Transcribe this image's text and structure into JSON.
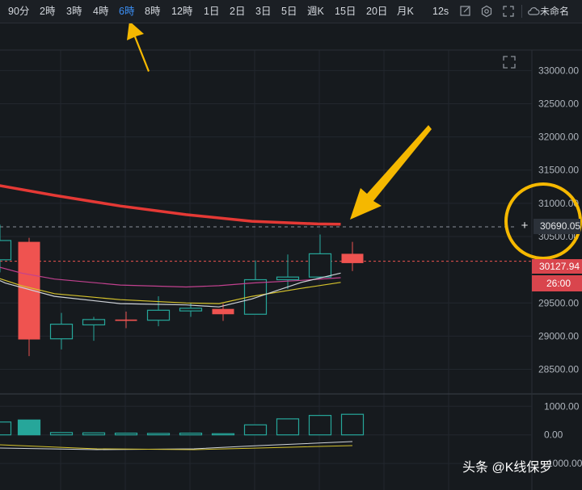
{
  "toolbar": {
    "intervals": [
      {
        "label": "90分",
        "active": false
      },
      {
        "label": "2時",
        "active": false
      },
      {
        "label": "3時",
        "active": false
      },
      {
        "label": "4時",
        "active": false
      },
      {
        "label": "6時",
        "active": true
      },
      {
        "label": "8時",
        "active": false
      },
      {
        "label": "12時",
        "active": false
      },
      {
        "label": "1日",
        "active": false
      },
      {
        "label": "2日",
        "active": false
      },
      {
        "label": "3日",
        "active": false
      },
      {
        "label": "5日",
        "active": false
      },
      {
        "label": "週K",
        "active": false
      },
      {
        "label": "15日",
        "active": false
      },
      {
        "label": "20日",
        "active": false
      },
      {
        "label": "月K",
        "active": false
      },
      {
        "label": "12s",
        "active": false
      }
    ],
    "icons": [
      "draw-tool-icon",
      "settings-icon",
      "fullscreen-icon",
      "cloud-icon"
    ],
    "layout_name": "未命名"
  },
  "chart": {
    "price_axis_labels": [
      "33000.00",
      "32500.00",
      "32000.00",
      "31500.00",
      "31000.00",
      "30500.00",
      "29500.00",
      "29000.00",
      "28500.00"
    ],
    "crosshair_price": "30690.05",
    "last_price": "30127.94",
    "countdown": "26:00",
    "volume_axis_labels": [
      "1000.00",
      "0.00",
      "-1000.00"
    ],
    "colors": {
      "up": "#26a69a",
      "down": "#ef5350",
      "ma_long": "#e53935",
      "accent": "#3b8ff5",
      "annotation": "#f5b800"
    }
  },
  "chart_data": {
    "type": "candlestick",
    "ylim": [
      28300,
      33150
    ],
    "candles": [
      {
        "o": 30150,
        "h": 30680,
        "l": 29960,
        "c": 30440
      },
      {
        "o": 30420,
        "h": 30480,
        "l": 28700,
        "c": 28950
      },
      {
        "o": 28960,
        "h": 29350,
        "l": 28800,
        "c": 29180
      },
      {
        "o": 29170,
        "h": 29290,
        "l": 28930,
        "c": 29250
      },
      {
        "o": 29250,
        "h": 29370,
        "l": 29120,
        "c": 29230
      },
      {
        "o": 29240,
        "h": 29600,
        "l": 29150,
        "c": 29390
      },
      {
        "o": 29380,
        "h": 29500,
        "l": 29290,
        "c": 29420
      },
      {
        "o": 29410,
        "h": 29490,
        "l": 29230,
        "c": 29330
      },
      {
        "o": 29330,
        "h": 30140,
        "l": 29330,
        "c": 29850
      },
      {
        "o": 29850,
        "h": 30230,
        "l": 29710,
        "c": 29890
      },
      {
        "o": 29890,
        "h": 30530,
        "l": 29870,
        "c": 30240
      },
      {
        "o": 30240,
        "h": 30420,
        "l": 29980,
        "c": 30100
      }
    ],
    "ma_long": [
      {
        "x": -0.5,
        "y": 31340
      },
      {
        "x": 2,
        "y": 31120
      },
      {
        "x": 4,
        "y": 30960
      },
      {
        "x": 6,
        "y": 30830
      },
      {
        "x": 8,
        "y": 30730
      },
      {
        "x": 10,
        "y": 30690
      },
      {
        "x": 10.7,
        "y": 30685
      }
    ],
    "ma_short": [
      {
        "x": -0.5,
        "y": 30030
      },
      {
        "x": 0.5,
        "y": 29800
      },
      {
        "x": 2,
        "y": 29600
      },
      {
        "x": 4,
        "y": 29490
      },
      {
        "x": 6,
        "y": 29470
      },
      {
        "x": 7,
        "y": 29440
      },
      {
        "x": 8,
        "y": 29560
      },
      {
        "x": 9.5,
        "y": 29810
      },
      {
        "x": 10.7,
        "y": 29950
      }
    ],
    "ma_mid": [
      {
        "x": -0.5,
        "y": 30000
      },
      {
        "x": 1,
        "y": 29760
      },
      {
        "x": 2,
        "y": 29640
      },
      {
        "x": 4,
        "y": 29550
      },
      {
        "x": 6,
        "y": 29500
      },
      {
        "x": 7,
        "y": 29490
      },
      {
        "x": 8,
        "y": 29600
      },
      {
        "x": 9.5,
        "y": 29720
      },
      {
        "x": 10.7,
        "y": 29810
      }
    ],
    "ma_pink": [
      {
        "x": -0.5,
        "y": 30150
      },
      {
        "x": 1,
        "y": 29950
      },
      {
        "x": 2,
        "y": 29860
      },
      {
        "x": 4,
        "y": 29770
      },
      {
        "x": 6,
        "y": 29740
      },
      {
        "x": 7,
        "y": 29760
      },
      {
        "x": 8,
        "y": 29800
      },
      {
        "x": 9.5,
        "y": 29840
      },
      {
        "x": 10.7,
        "y": 29880
      }
    ],
    "volume": [
      450,
      520,
      80,
      70,
      60,
      50,
      60,
      40,
      350,
      560,
      680,
      720
    ],
    "volume_ylim": [
      -1450,
      1150
    ]
  }
}
